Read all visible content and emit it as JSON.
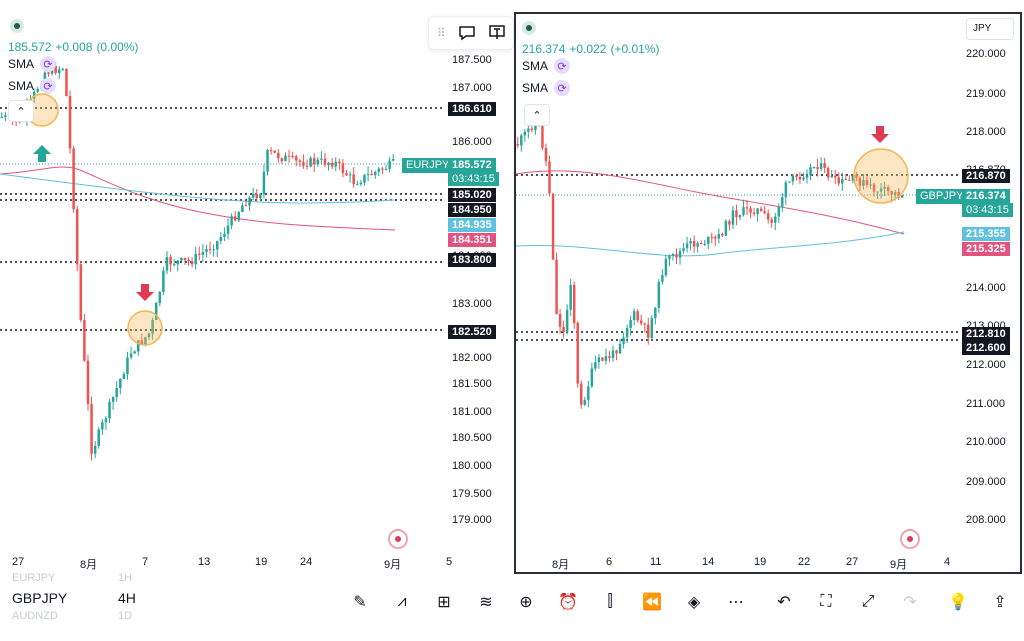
{
  "left_chart": {
    "quote": {
      "price": "185.572",
      "change": "+0.008",
      "pct": "(0.00%)"
    },
    "indicators": [
      "SMA",
      "SMA"
    ],
    "symbol_tag": "EURJPY",
    "price_tag": "185.572",
    "countdown": "03:43:15",
    "axis_labels": [
      "187.500",
      "187.000",
      "186.000",
      "185.500",
      "184.000",
      "183.000",
      "182.000",
      "181.500",
      "181.000",
      "180.500",
      "180.000",
      "179.500",
      "179.000"
    ],
    "level_tags": [
      {
        "label": "186.610",
        "color": "#131722"
      },
      {
        "label": "185.020",
        "color": "#131722"
      },
      {
        "label": "184.950",
        "color": "#131722"
      },
      {
        "label": "184.935",
        "color": "#5fc1dc"
      },
      {
        "label": "184.351",
        "color": "#e0547f"
      },
      {
        "label": "183.800",
        "color": "#131722"
      },
      {
        "label": "182.520",
        "color": "#131722"
      }
    ],
    "time_labels": [
      "27",
      "8月",
      "7",
      "13",
      "19",
      "24",
      "9月",
      "5"
    ]
  },
  "right_chart": {
    "quote": {
      "price": "216.374",
      "change": "+0.022",
      "pct": "(+0.01%)"
    },
    "indicators": [
      "SMA",
      "SMA"
    ],
    "currency": "JPY",
    "symbol_tag": "GBPJPY",
    "price_tag": "216.374",
    "countdown": "03:43:15",
    "axis_labels": [
      "220.000",
      "219.000",
      "218.000",
      "216.870",
      "216.000",
      "215.000",
      "214.000",
      "213.000",
      "212.000",
      "211.000",
      "210.000",
      "209.000",
      "208.000"
    ],
    "level_tags": [
      {
        "label": "216.870",
        "color": "#131722"
      },
      {
        "label": "215.355",
        "color": "#5fc1dc"
      },
      {
        "label": "215.325",
        "color": "#e0547f"
      },
      {
        "label": "212.810",
        "color": "#131722"
      },
      {
        "label": "212.600",
        "color": "#131722"
      }
    ],
    "time_labels": [
      "8月",
      "6",
      "11",
      "14",
      "19",
      "22",
      "27",
      "9月",
      "4"
    ]
  },
  "watchlist": {
    "items": [
      {
        "symbol": "EURJPY",
        "interval": "1H",
        "faded": true
      },
      {
        "symbol": "GBPJPY",
        "interval": "4H",
        "faded": false
      },
      {
        "symbol": "AUDNZD",
        "interval": "1D",
        "faded": true
      }
    ]
  },
  "colors": {
    "up": "#26a69a",
    "down": "#ef5350",
    "sma_fast": "#e0547f",
    "sma_slow": "#5fc1dc",
    "highlight": "#f5b553",
    "arrow_up": "#26a69a",
    "arrow_down": "#e03a52"
  },
  "toolbar_icons": [
    "draw-pen-icon",
    "indicators-icon",
    "grid-layout-icon",
    "strategy-icon",
    "add-icon",
    "alert-clock-icon",
    "candle-type-icon",
    "replay-icon",
    "layers-icon",
    "more-icon",
    "undo-icon",
    "fullscreen-icon",
    "expand-icon",
    "redo-icon",
    "ideas-icon",
    "share-icon"
  ]
}
